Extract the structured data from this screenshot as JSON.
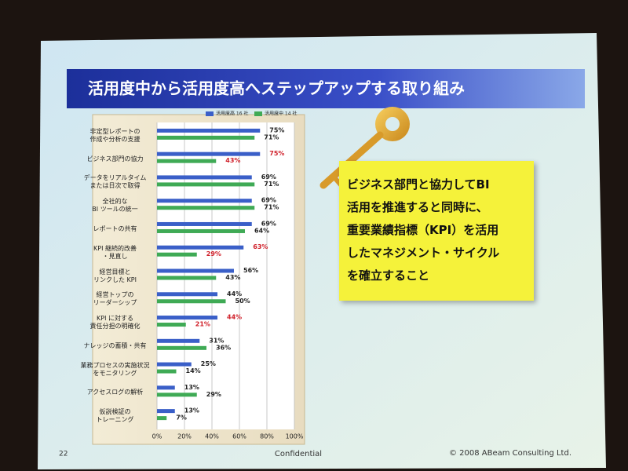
{
  "slide": {
    "title": "活用度中から活用度高へステップアップする取り組み",
    "callout": [
      "ビジネス部門と協力してBI",
      "活用を推進すると同時に、",
      "重要業績指標（KPI）を活用",
      "したマネジメント・サイクル",
      "を確立すること"
    ],
    "page_number": "22",
    "footer_center": "Confidential",
    "copyright": "© 2008 ABeam Consulting Ltd."
  },
  "chart_data": {
    "type": "hbar",
    "categories": [
      "非定型レポートの\n作成や分析の支援",
      "ビジネス部門の協力",
      "データをリアルタイム\nまたは日次で取得",
      "全社的な\nBI ツールの統一",
      "レポートの共有",
      "KPI 継続的改善\n・見直し",
      "経営目標と\nリンクした KPI",
      "経営トップの\nリーダーシップ",
      "KPI に対する\n責任分担の明確化",
      "ナレッジの蓄積・共有",
      "業務プロセスの実施状況\nをモニタリング",
      "アクセスログの解析",
      "仮説検証の\nトレーニング"
    ],
    "series": [
      {
        "name": "活用度高 16 社",
        "color": "#3a5fc8",
        "values": [
          75,
          75,
          69,
          69,
          69,
          63,
          56,
          44,
          44,
          31,
          25,
          13,
          13
        ],
        "value_labels": [
          "75%",
          "75%",
          "69%",
          "69%",
          "69%",
          "63%",
          "56%",
          "44%",
          "44%",
          "31%",
          "25%",
          "13%",
          "13%"
        ],
        "label_colors": [
          "#222",
          "#d0202a",
          "#222",
          "#222",
          "#222",
          "#d0202a",
          "#222",
          "#222",
          "#d0202a",
          "#222",
          "#222",
          "#222",
          "#222"
        ]
      },
      {
        "name": "活用度中 14 社",
        "color": "#3faa55",
        "values": [
          71,
          43,
          71,
          71,
          64,
          29,
          43,
          50,
          21,
          36,
          14,
          29,
          7
        ],
        "value_labels": [
          "71%",
          "43%",
          "71%",
          "71%",
          "64%",
          "29%",
          "43%",
          "50%",
          "21%",
          "36%",
          "14%",
          "29%",
          "7%"
        ],
        "label_colors": [
          "#222",
          "#d0202a",
          "#222",
          "#222",
          "#222",
          "#d0202a",
          "#222",
          "#222",
          "#d0202a",
          "#222",
          "#222",
          "#222",
          "#222"
        ]
      }
    ],
    "xlim": [
      0,
      100
    ],
    "xticks": [
      {
        "value": 0,
        "label": "0%"
      },
      {
        "value": 20,
        "label": "20%"
      },
      {
        "value": 40,
        "label": "40%"
      },
      {
        "value": 60,
        "label": "60%"
      },
      {
        "value": 80,
        "label": "80%"
      },
      {
        "value": 100,
        "label": "100%"
      }
    ],
    "grid": true
  }
}
